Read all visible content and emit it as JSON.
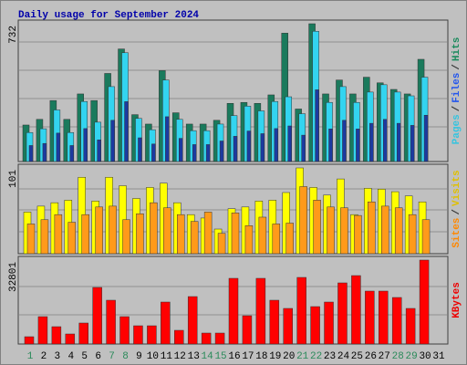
{
  "title": "Daily usage for September 2024",
  "legend_separator": "/",
  "chart_data": [
    {
      "type": "bar",
      "ylim": [
        0,
        732
      ],
      "yticks": [
        732
      ],
      "series": [
        {
          "name": "Hits",
          "color": "#1a7a5c",
          "values": [
            194,
            224,
            324,
            224,
            359,
            324,
            468,
            598,
            249,
            199,
            483,
            259,
            199,
            199,
            219,
            309,
            314,
            309,
            354,
            682,
            279,
            732,
            359,
            433,
            359,
            448,
            418,
            383,
            359,
            543,
            null
          ]
        },
        {
          "name": "Files",
          "color": "#33d4f0",
          "values": [
            154,
            174,
            274,
            154,
            319,
            209,
            398,
            578,
            229,
            169,
            433,
            224,
            164,
            164,
            199,
            244,
            294,
            269,
            319,
            344,
            254,
            692,
            314,
            398,
            314,
            369,
            408,
            369,
            349,
            448,
            null
          ]
        },
        {
          "name": "Pages",
          "color": "#1c3aa0",
          "values": [
            85,
            96,
            151,
            85,
            175,
            115,
            219,
            318,
            126,
            93,
            238,
            123,
            90,
            90,
            109,
            134,
            162,
            148,
            175,
            189,
            140,
            381,
            173,
            219,
            173,
            203,
            224,
            203,
            192,
            246,
            null
          ]
        }
      ],
      "legend_colors": [
        "#1a8a5c",
        "#2255ee",
        "#33c4e0"
      ]
    },
    {
      "type": "bar",
      "ylim": [
        0,
        101
      ],
      "yticks": [
        101
      ],
      "series": [
        {
          "name": "Visits",
          "color": "#ffff00",
          "values": [
            49,
            56,
            60,
            63,
            90,
            62,
            90,
            80,
            65,
            78,
            83,
            60,
            46,
            42,
            29,
            53,
            55,
            62,
            63,
            72,
            101,
            78,
            69,
            88,
            46,
            77,
            76,
            73,
            68,
            61,
            null
          ]
        },
        {
          "name": "Sites",
          "color": "#ff9a1a",
          "values": [
            35,
            40,
            46,
            37,
            46,
            55,
            56,
            40,
            47,
            60,
            54,
            46,
            38,
            49,
            24,
            48,
            33,
            43,
            35,
            36,
            79,
            63,
            55,
            54,
            45,
            61,
            56,
            54,
            46,
            40,
            null
          ]
        }
      ],
      "legend_colors": [
        "#e0c000",
        "#ff8800"
      ]
    },
    {
      "type": "bar",
      "ylim": [
        0,
        32801
      ],
      "yticks": [
        32801
      ],
      "series": [
        {
          "name": "KBytes",
          "color": "#ff0000",
          "values": [
            2852,
            10695,
            6774,
            3922,
            8200,
            22103,
            17112,
            10695,
            7130,
            7130,
            16399,
            5348,
            18538,
            4278,
            4278,
            25668,
            11052,
            25668,
            17112,
            13904,
            26025,
            14617,
            16399,
            23886,
            26738,
            20677,
            20677,
            18182,
            13904,
            32801,
            null
          ]
        }
      ],
      "legend_colors": [
        "#ee0000"
      ],
      "categories": [
        "1",
        "2",
        "3",
        "4",
        "5",
        "6",
        "7",
        "8",
        "9",
        "10",
        "11",
        "12",
        "13",
        "14",
        "15",
        "16",
        "17",
        "18",
        "19",
        "20",
        "21",
        "22",
        "23",
        "24",
        "25",
        "26",
        "27",
        "28",
        "29",
        "30",
        "31"
      ],
      "highlight_indices": [
        0,
        6,
        7,
        13,
        14,
        20,
        21,
        27,
        28
      ],
      "highlight_color": "#2a8a5a"
    }
  ]
}
